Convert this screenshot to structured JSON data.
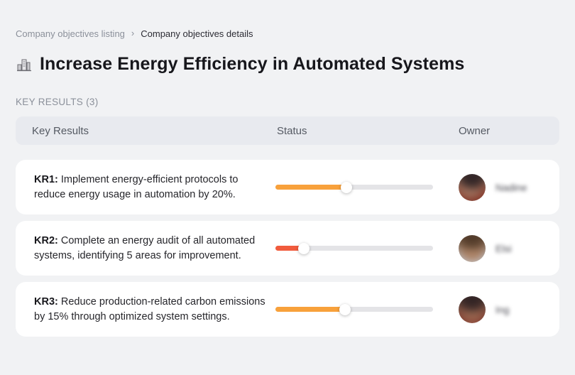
{
  "breadcrumb": {
    "separator": "›",
    "items": [
      {
        "label": "Company objectives listing"
      },
      {
        "label": "Company objectives details"
      }
    ]
  },
  "page": {
    "title": "Increase Energy Efficiency in Automated Systems",
    "title_icon": "buildings-icon",
    "section_label": "KEY RESULTS (3)"
  },
  "table": {
    "headers": {
      "key_results": "Key Results",
      "status": "Status",
      "owner": "Owner"
    },
    "rows": [
      {
        "kr_label": "KR1:",
        "kr_text": "Implement energy-efficient protocols to reduce energy usage in automation by 20%.",
        "progress_percent": 45,
        "progress_color": "#f8a13b",
        "owner_name": "Nadine"
      },
      {
        "kr_label": "KR2:",
        "kr_text": "Complete an energy audit of all automated systems, identifying 5 areas for improvement.",
        "progress_percent": 18,
        "progress_color": "#f15b3d",
        "owner_name": "Elsi"
      },
      {
        "kr_label": "KR3:",
        "kr_text": "Reduce production-related carbon emissions by 15% through optimized system settings.",
        "progress_percent": 44,
        "progress_color": "#f8a13b",
        "owner_name": "Ing"
      }
    ]
  },
  "colors": {
    "page_background": "#f1f2f4",
    "table_header_background": "#e8eaef",
    "card_background": "#ffffff",
    "slider_track": "#e4e4e7",
    "progress_orange": "#f8a13b",
    "progress_red": "#f15b3d",
    "muted_text": "#8b909a",
    "dark_text": "#17171c"
  }
}
